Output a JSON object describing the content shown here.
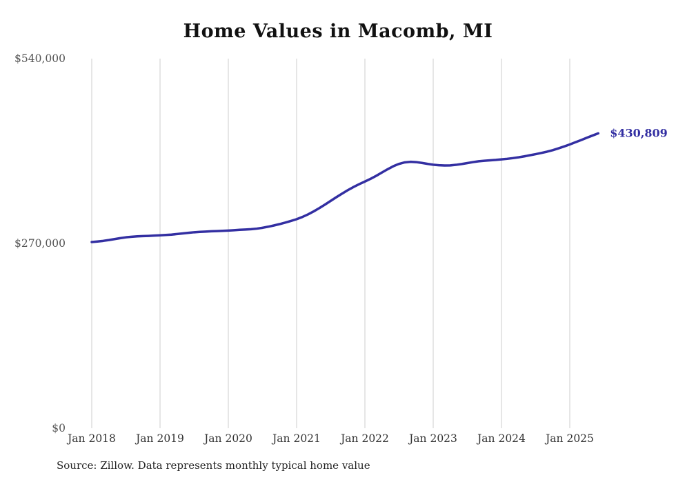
{
  "title": "Home Values in Macomb, MI",
  "source_note": "Source: Zillow. Data represents monthly typical home value",
  "latest_value_label": "$430,809",
  "colors": {
    "line": "#332fa2",
    "grid": "#cccccc",
    "y_tick_text": "#555555",
    "x_tick_text": "#333333",
    "title_text": "#111111"
  },
  "chart_data": {
    "type": "line",
    "title": "Home Values in Macomb, MI",
    "xlabel": "",
    "ylabel": "",
    "ylim": [
      0,
      540000
    ],
    "y_tick_values": [
      0,
      270000,
      540000
    ],
    "y_tick_labels": [
      "$0",
      "$270,000",
      "$540,000"
    ],
    "x_tick_labels": [
      "Jan 2018",
      "Jan 2019",
      "Jan 2020",
      "Jan 2021",
      "Jan 2022",
      "Jan 2023",
      "Jan 2024",
      "Jan 2025"
    ],
    "x_start_month": "2018-01",
    "x_end_month": "2025-06",
    "grid": "vertical-only",
    "legend": "none",
    "annotation": {
      "text": "$430,809",
      "at": "last-point"
    },
    "series": [
      {
        "name": "Typical home value",
        "values": [
          272000,
          272800,
          273700,
          274900,
          276300,
          277700,
          278900,
          279700,
          280300,
          280700,
          281000,
          281400,
          281800,
          282300,
          282900,
          283700,
          284600,
          285500,
          286300,
          286900,
          287300,
          287700,
          288000,
          288400,
          288800,
          289300,
          289900,
          290300,
          290800,
          291600,
          292800,
          294400,
          296200,
          298200,
          300400,
          302800,
          305400,
          308600,
          312400,
          316800,
          321600,
          326800,
          332200,
          337600,
          342800,
          347800,
          352400,
          356600,
          360400,
          364400,
          368800,
          373600,
          378400,
          382800,
          386200,
          388400,
          389200,
          388800,
          387600,
          386200,
          385000,
          384200,
          383800,
          384000,
          384800,
          386000,
          387400,
          388800,
          390000,
          390800,
          391400,
          392000,
          392800,
          393600,
          394600,
          395800,
          397200,
          398800,
          400400,
          402200,
          404000,
          406200,
          408800,
          411600,
          414600,
          417800,
          421000,
          424400,
          427600,
          430809
        ]
      }
    ]
  }
}
